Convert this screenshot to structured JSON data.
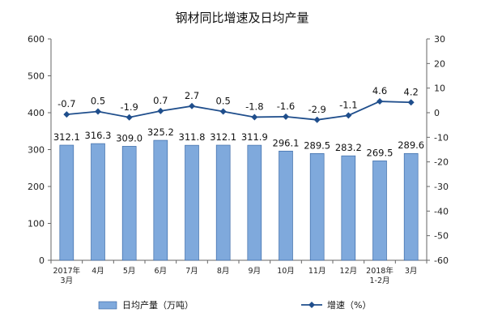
{
  "chart_data": {
    "type": "bar",
    "title": "钢材同比增速及日均产量",
    "categories": [
      [
        "2017年",
        "3月"
      ],
      [
        "4月"
      ],
      [
        "5月"
      ],
      [
        "6月"
      ],
      [
        "7月"
      ],
      [
        "8月"
      ],
      [
        "9月"
      ],
      [
        "10月"
      ],
      [
        "11月"
      ],
      [
        "12月"
      ],
      [
        "2018年",
        "1-2月"
      ],
      [
        "3月"
      ]
    ],
    "series": [
      {
        "name": "日均产量（万吨）",
        "type": "bar",
        "axis": "left",
        "values": [
          312.1,
          316.3,
          309.0,
          325.2,
          311.8,
          312.1,
          311.9,
          296.1,
          289.5,
          283.2,
          269.5,
          289.6
        ],
        "labels": [
          "312.1",
          "316.3",
          "309.0",
          "325.2",
          "311.8",
          "312.1",
          "311.9",
          "296.1",
          "289.5",
          "283.2",
          "269.5",
          "289.6"
        ]
      },
      {
        "name": "增速（%）",
        "type": "line",
        "axis": "right",
        "values": [
          -0.7,
          0.5,
          -1.9,
          0.7,
          2.7,
          0.5,
          -1.8,
          -1.6,
          -2.9,
          -1.1,
          4.6,
          4.2
        ],
        "labels": [
          "-0.7",
          "0.5",
          "-1.9",
          "0.7",
          "2.7",
          "0.5",
          "-1.8",
          "-1.6",
          "-2.9",
          "-1.1",
          "4.6",
          "4.2"
        ]
      }
    ],
    "y_left": {
      "min": 0,
      "max": 600,
      "ticks": [
        "0",
        "100",
        "200",
        "300",
        "400",
        "500",
        "600"
      ]
    },
    "y_right": {
      "min": -60,
      "max": 30,
      "ticks": [
        "-60",
        "-50",
        "-40",
        "-30",
        "-20",
        "-10",
        "0",
        "10",
        "20",
        "30"
      ]
    },
    "grid": false,
    "legend_position": "bottom",
    "colors": {
      "bar_fill": "#7fa9dc",
      "bar_stroke": "#2e5f9e",
      "line": "#1f4e8c",
      "axis": "#666666"
    }
  }
}
